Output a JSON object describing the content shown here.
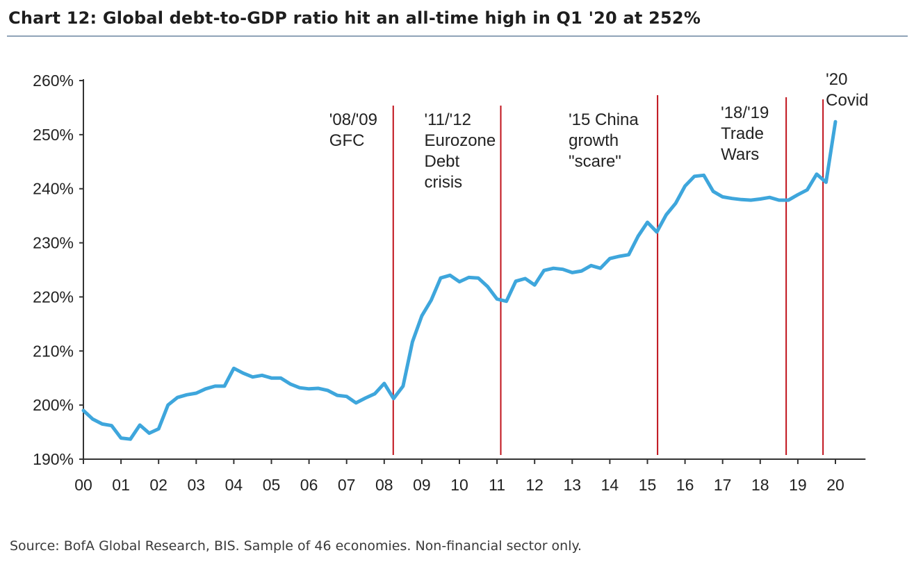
{
  "chart_data": {
    "type": "line",
    "title": "Chart 12: Global debt-to-GDP ratio hit an all-time high in Q1 '20 at 252%",
    "source": "Source: BofA Global Research, BIS. Sample of 46 economies. Non-financial sector only.",
    "xlabel": "",
    "ylabel": "",
    "xlim": [
      2000,
      2020.8
    ],
    "ylim": [
      190,
      260
    ],
    "y_ticks": [
      "190%",
      "200%",
      "210%",
      "220%",
      "230%",
      "240%",
      "250%",
      "260%"
    ],
    "x_ticks": [
      "00",
      "01",
      "02",
      "03",
      "04",
      "05",
      "06",
      "07",
      "08",
      "09",
      "10",
      "11",
      "12",
      "13",
      "14",
      "15",
      "16",
      "17",
      "18",
      "19",
      "20"
    ],
    "grid": false,
    "legend": "none",
    "line_color": "#3ea6dc",
    "event_line_color": "#c0121b",
    "series": [
      {
        "x": [
          2000,
          2000.25,
          2000.5,
          2000.75,
          2001,
          2001.25,
          2001.5,
          2001.75,
          2002,
          2002.25,
          2002.5,
          2002.75,
          2003,
          2003.25,
          2003.5,
          2003.75,
          2004,
          2004.25,
          2004.5,
          2004.75,
          2005,
          2005.25,
          2005.5,
          2005.75,
          2006,
          2006.25,
          2006.5,
          2006.75,
          2007,
          2007.25,
          2007.5,
          2007.75,
          2008,
          2008.25,
          2008.5,
          2008.75,
          2009,
          2009.25,
          2009.5,
          2009.75,
          2010,
          2010.25,
          2010.5,
          2010.75,
          2011,
          2011.25,
          2011.5,
          2011.75,
          2012,
          2012.25,
          2012.5,
          2012.75,
          2013,
          2013.25,
          2013.5,
          2013.75,
          2014,
          2014.25,
          2014.5,
          2014.75,
          2015,
          2015.25,
          2015.5,
          2015.75,
          2016,
          2016.25,
          2016.5,
          2016.75,
          2017,
          2017.25,
          2017.5,
          2017.75,
          2018,
          2018.25,
          2018.5,
          2018.75,
          2019,
          2019.25,
          2019.5,
          2019.75,
          2020
        ],
        "values": [
          199.0,
          197.4,
          196.5,
          196.2,
          193.9,
          193.7,
          196.3,
          194.8,
          195.6,
          200.0,
          201.4,
          201.9,
          202.2,
          203.0,
          203.5,
          203.5,
          206.8,
          205.9,
          205.2,
          205.5,
          205.0,
          205.0,
          203.9,
          203.2,
          203.0,
          203.1,
          202.7,
          201.8,
          201.6,
          200.4,
          201.3,
          202.1,
          204.0,
          201.2,
          203.5,
          211.7,
          216.5,
          219.4,
          223.5,
          224.0,
          222.8,
          223.6,
          223.5,
          221.9,
          219.6,
          219.2,
          222.9,
          223.4,
          222.2,
          224.9,
          225.3,
          225.1,
          224.5,
          224.8,
          225.8,
          225.3,
          227.1,
          227.5,
          227.8,
          231.2,
          233.8,
          232.0,
          235.2,
          237.3,
          240.5,
          242.3,
          242.5,
          239.5,
          238.5,
          238.2,
          238.0,
          237.9,
          238.1,
          238.4,
          237.9,
          237.9,
          238.9,
          239.8,
          242.7,
          241.2,
          252.4
        ]
      }
    ],
    "annotations": [
      {
        "x": 2008.24,
        "lines": [
          "'08/'09",
          "GFC"
        ]
      },
      {
        "x": 2011.1,
        "lines": [
          "'11/'12",
          "Eurozone",
          "Debt",
          "crisis"
        ]
      },
      {
        "x": 2015.27,
        "lines": [
          "'15 China",
          "growth",
          "\"scare\""
        ]
      },
      {
        "x": 2018.69,
        "lines": [
          "'18/'19",
          "Trade",
          "Wars"
        ]
      },
      {
        "x": 2019.67,
        "lines": [
          "'20",
          "Covid"
        ]
      }
    ]
  }
}
